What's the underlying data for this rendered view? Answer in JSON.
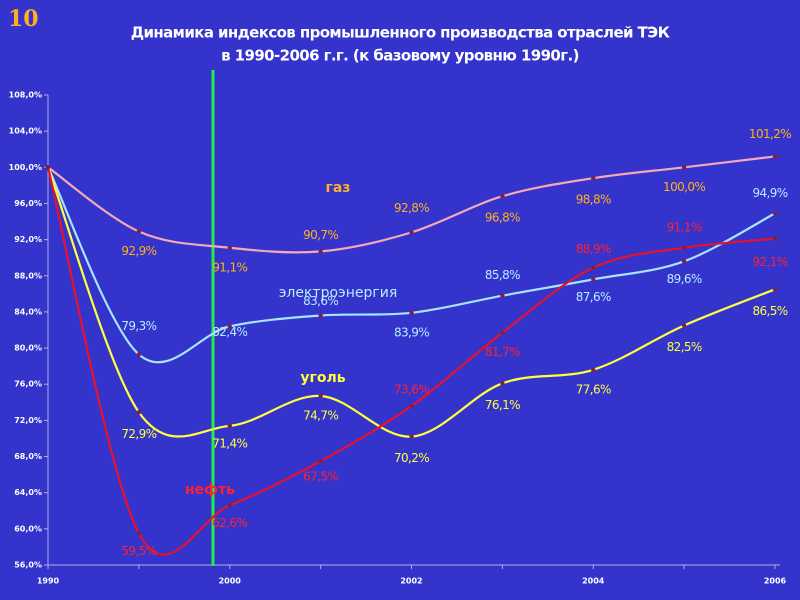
{
  "slide_number": "10",
  "chart_data": {
    "type": "line",
    "title": "Динамика индексов промышленного производства отраслей ТЭК",
    "subtitle": "в 1990-2006 г.г. (к базовому уровню 1990г.)",
    "categories": [
      "1990",
      null,
      "2000",
      null,
      "2002",
      null,
      "2004",
      null,
      "2006"
    ],
    "series": [
      {
        "name": "газ",
        "color": "#f4a8b8",
        "label_color": "#ffb020",
        "values": [
          100,
          92.9,
          91.1,
          90.7,
          92.8,
          96.8,
          98.8,
          100.0,
          101.2
        ],
        "value_labels": [
          null,
          "92,9%",
          "91,1%",
          "90,7%",
          "92,8%",
          "96,8%",
          "98,8%",
          "100,0%",
          "101,2%"
        ]
      },
      {
        "name": "электроэнергия",
        "color": "#a8e4ff",
        "label_color": "#b8ecff",
        "values": [
          100,
          79.3,
          82.4,
          83.6,
          83.9,
          85.8,
          87.6,
          89.6,
          94.9
        ],
        "value_labels": [
          null,
          "79,3%",
          "82,4%",
          "83,6%",
          "83,9%",
          "85,8%",
          "87,6%",
          "89,6%",
          "94,9%"
        ]
      },
      {
        "name": "уголь",
        "color": "#ffff40",
        "label_color": "#ffff40",
        "values": [
          100,
          72.9,
          71.4,
          74.7,
          70.2,
          76.1,
          77.6,
          82.5,
          86.5
        ],
        "value_labels": [
          null,
          "72,9%",
          "71,4%",
          "74,7%",
          "70,2%",
          "76,1%",
          "77,6%",
          "82,5%",
          "86,5%"
        ]
      },
      {
        "name": "нефть",
        "color": "#e8102a",
        "label_color": "#ff2030",
        "values": [
          100,
          59.5,
          62.6,
          67.5,
          73.6,
          81.7,
          88.9,
          91.1,
          92.1
        ],
        "value_labels": [
          null,
          "59,5%",
          "62,6%",
          "67,5%",
          "73,6%",
          "81,7%",
          "88,9%",
          "91,1%",
          "92,1%"
        ]
      }
    ],
    "ylim": [
      56,
      108
    ],
    "yticks": [
      {
        "value": 56,
        "label": "56,0%"
      },
      {
        "value": 60,
        "label": "60,0%"
      },
      {
        "value": 64,
        "label": "64,0%"
      },
      {
        "value": 68,
        "label": "68,0%"
      },
      {
        "value": 72,
        "label": "72,0%"
      },
      {
        "value": 76,
        "label": "76,0%"
      },
      {
        "value": 80,
        "label": "80,0%"
      },
      {
        "value": 84,
        "label": "84,0%"
      },
      {
        "value": 88,
        "label": "88,0%"
      },
      {
        "value": 92,
        "label": "92,0%"
      },
      {
        "value": 96,
        "label": "96,0%"
      },
      {
        "value": 100,
        "label": "100,0%"
      },
      {
        "value": 104,
        "label": "104,0%"
      },
      {
        "value": 108,
        "label": "108,0%"
      }
    ]
  }
}
